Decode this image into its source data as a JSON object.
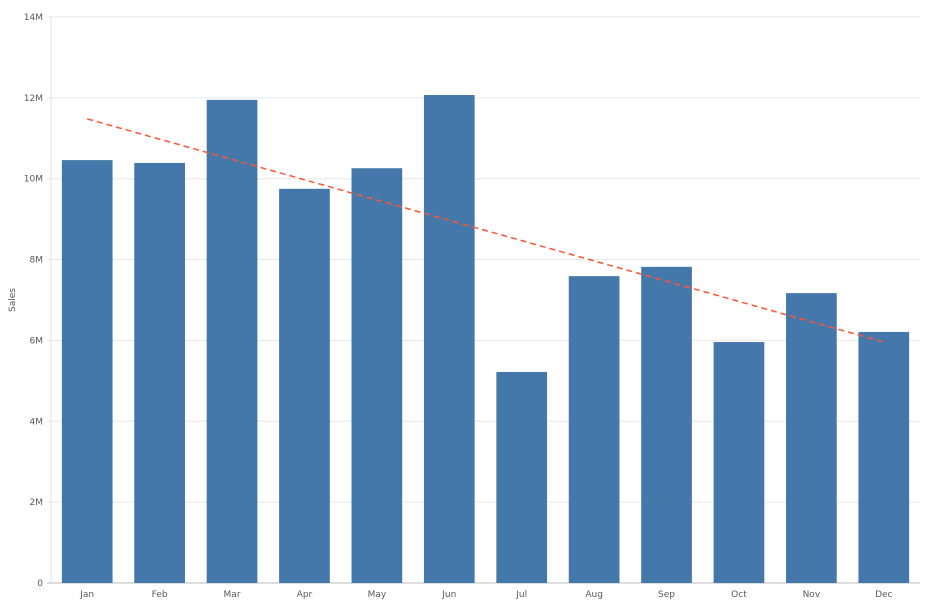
{
  "chart_data": {
    "type": "bar",
    "categories": [
      "Jan",
      "Feb",
      "Mar",
      "Apr",
      "May",
      "Jun",
      "Jul",
      "Aug",
      "Sep",
      "Oct",
      "Nov",
      "Dec"
    ],
    "series": [
      {
        "values": [
          10.46,
          10.39,
          11.95,
          9.75,
          10.26,
          12.07,
          5.22,
          7.59,
          7.82,
          5.96,
          7.17,
          6.21
        ]
      }
    ],
    "trendline": {
      "type": "linear",
      "start": 11.48,
      "end": 5.96,
      "style": "dashed"
    },
    "ylabel": "Sales",
    "xlabel": "",
    "ylim": [
      0,
      14
    ],
    "yticks": [
      "0",
      "2M",
      "4M",
      "6M",
      "8M",
      "10M",
      "12M",
      "14M"
    ],
    "grid": true,
    "colors": {
      "bar": "#4477aa",
      "trend": "#ff5533"
    }
  }
}
